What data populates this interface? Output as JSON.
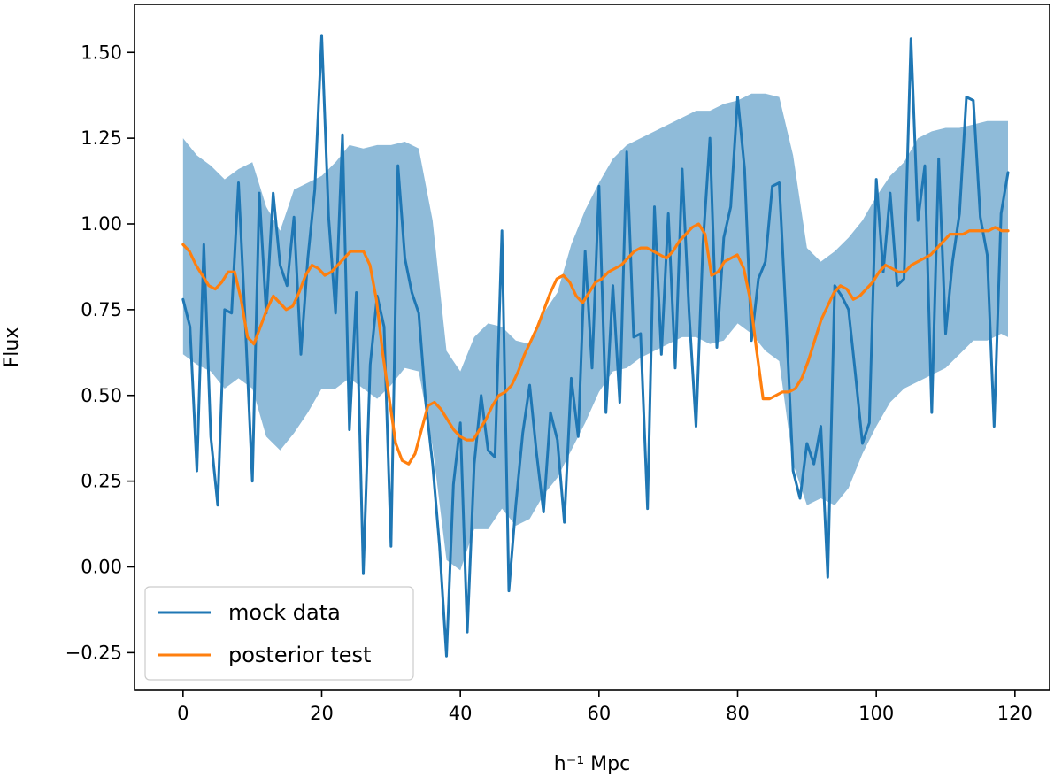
{
  "chart_data": {
    "type": "line",
    "title": "",
    "xlabel": "h⁻¹ Mpc",
    "ylabel": "Flux",
    "xlim": [
      -7,
      125
    ],
    "ylim": [
      -0.36,
      1.64
    ],
    "xticks": [
      0,
      20,
      40,
      60,
      80,
      100,
      120
    ],
    "yticks": [
      -0.25,
      0.0,
      0.25,
      0.5,
      0.75,
      1.0,
      1.25,
      1.5
    ],
    "ytick_labels": [
      "−0.25",
      "0.00",
      "0.25",
      "0.50",
      "0.75",
      "1.00",
      "1.25",
      "1.50"
    ],
    "grid": false,
    "legend": {
      "placement": "lower-left"
    },
    "colors": {
      "mock": "#1f77b4",
      "posterior": "#ff7f0e",
      "band": "#1f77b4"
    },
    "band": {
      "x": [
        0,
        2,
        4,
        6,
        8,
        10,
        12,
        14,
        16,
        18,
        20,
        22,
        24,
        26,
        28,
        30,
        32,
        34,
        36,
        38,
        40,
        42,
        44,
        46,
        48,
        50,
        52,
        54,
        56,
        58,
        60,
        62,
        64,
        66,
        68,
        70,
        72,
        74,
        76,
        78,
        80,
        82,
        84,
        86,
        88,
        90,
        92,
        94,
        96,
        98,
        100,
        102,
        104,
        106,
        108,
        110,
        112,
        114,
        116,
        118,
        119
      ],
      "upper": [
        1.25,
        1.2,
        1.17,
        1.13,
        1.16,
        1.18,
        1.05,
        0.98,
        1.1,
        1.12,
        1.14,
        1.18,
        1.23,
        1.22,
        1.23,
        1.23,
        1.24,
        1.22,
        1.01,
        0.63,
        0.57,
        0.67,
        0.71,
        0.7,
        0.66,
        0.65,
        0.74,
        0.8,
        0.94,
        1.04,
        1.12,
        1.19,
        1.23,
        1.25,
        1.27,
        1.29,
        1.31,
        1.33,
        1.33,
        1.35,
        1.36,
        1.38,
        1.38,
        1.37,
        1.2,
        0.93,
        0.89,
        0.92,
        0.96,
        1.01,
        1.08,
        1.14,
        1.18,
        1.25,
        1.27,
        1.28,
        1.28,
        1.29,
        1.3,
        1.3,
        1.3
      ],
      "lower": [
        0.62,
        0.59,
        0.57,
        0.52,
        0.55,
        0.52,
        0.38,
        0.34,
        0.39,
        0.45,
        0.52,
        0.52,
        0.55,
        0.52,
        0.49,
        0.53,
        0.58,
        0.57,
        0.35,
        0.02,
        -0.01,
        0.11,
        0.11,
        0.17,
        0.12,
        0.14,
        0.21,
        0.26,
        0.34,
        0.42,
        0.51,
        0.57,
        0.58,
        0.61,
        0.63,
        0.65,
        0.67,
        0.67,
        0.65,
        0.66,
        0.71,
        0.68,
        0.63,
        0.6,
        0.3,
        0.18,
        0.2,
        0.18,
        0.23,
        0.33,
        0.41,
        0.48,
        0.52,
        0.54,
        0.56,
        0.58,
        0.62,
        0.66,
        0.66,
        0.68,
        0.67
      ]
    },
    "series": [
      {
        "name": "mock data",
        "values": [
          0.78,
          0.7,
          0.28,
          0.94,
          0.38,
          0.18,
          0.75,
          0.74,
          1.12,
          0.7,
          0.25,
          1.09,
          0.74,
          1.09,
          0.88,
          0.82,
          1.02,
          0.62,
          0.9,
          1.1,
          1.55,
          1.02,
          0.74,
          1.26,
          0.4,
          0.8,
          -0.02,
          0.59,
          0.79,
          0.7,
          0.06,
          1.17,
          0.9,
          0.8,
          0.74,
          0.48,
          0.3,
          0.06,
          -0.26,
          0.24,
          0.42,
          -0.19,
          0.3,
          0.5,
          0.34,
          0.32,
          0.98,
          -0.07,
          0.18,
          0.39,
          0.53,
          0.33,
          0.16,
          0.45,
          0.37,
          0.13,
          0.55,
          0.38,
          0.92,
          0.58,
          1.11,
          0.45,
          0.82,
          0.48,
          1.21,
          0.67,
          0.68,
          0.17,
          1.05,
          0.62,
          1.03,
          0.58,
          1.16,
          0.74,
          0.41,
          0.94,
          1.25,
          0.64,
          0.96,
          1.05,
          1.37,
          1.16,
          0.66,
          0.84,
          0.89,
          1.11,
          1.12,
          0.72,
          0.28,
          0.2,
          0.36,
          0.3,
          0.41,
          -0.03,
          0.82,
          0.79,
          0.75,
          0.56,
          0.36,
          0.42,
          1.13,
          0.86,
          1.09,
          0.82,
          0.84,
          1.54,
          1.01,
          1.17,
          0.45,
          1.19,
          0.68,
          0.89,
          1.03,
          1.37,
          1.36,
          1.02,
          0.91,
          0.41,
          1.03,
          1.15
        ]
      },
      {
        "name": "posterior test",
        "values": [
          0.94,
          0.92,
          0.88,
          0.85,
          0.82,
          0.81,
          0.83,
          0.86,
          0.86,
          0.78,
          0.67,
          0.65,
          0.7,
          0.75,
          0.79,
          0.77,
          0.75,
          0.76,
          0.8,
          0.85,
          0.88,
          0.87,
          0.85,
          0.86,
          0.88,
          0.9,
          0.92,
          0.92,
          0.92,
          0.88,
          0.78,
          0.62,
          0.49,
          0.36,
          0.31,
          0.3,
          0.33,
          0.4,
          0.47,
          0.48,
          0.46,
          0.43,
          0.4,
          0.38,
          0.37,
          0.37,
          0.4,
          0.43,
          0.47,
          0.5,
          0.51,
          0.53,
          0.57,
          0.62,
          0.66,
          0.7,
          0.75,
          0.8,
          0.84,
          0.85,
          0.83,
          0.79,
          0.77,
          0.8,
          0.83,
          0.84,
          0.86,
          0.87,
          0.88,
          0.9,
          0.92,
          0.93,
          0.93,
          0.92,
          0.91,
          0.9,
          0.92,
          0.95,
          0.97,
          0.99,
          1.0,
          0.97,
          0.85,
          0.86,
          0.89,
          0.9,
          0.91,
          0.87,
          0.78,
          0.63,
          0.49,
          0.49,
          0.5,
          0.51,
          0.51,
          0.52,
          0.55,
          0.6,
          0.66,
          0.72,
          0.76,
          0.8,
          0.82,
          0.81,
          0.78,
          0.79,
          0.81,
          0.83,
          0.86,
          0.88,
          0.87,
          0.86,
          0.86,
          0.88,
          0.89,
          0.9,
          0.91,
          0.93,
          0.95,
          0.97,
          0.97,
          0.97,
          0.98,
          0.98,
          0.98,
          0.98,
          0.99,
          0.98,
          0.98
        ]
      }
    ]
  }
}
